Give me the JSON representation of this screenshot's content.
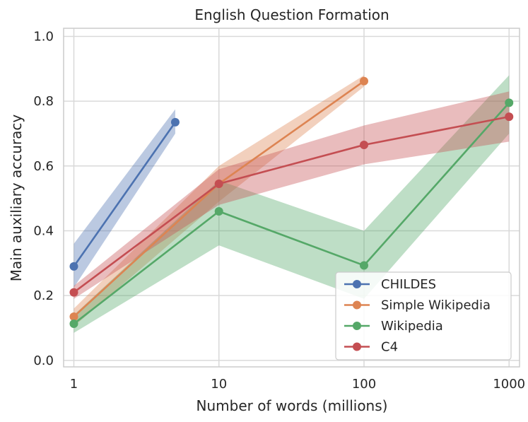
{
  "chart_data": {
    "type": "line",
    "title": "English Question Formation",
    "xlabel": "Number of words (millions)",
    "ylabel": "Main auxiliary accuracy",
    "xscale": "log",
    "xlim": [
      0.85,
      1180
    ],
    "ylim": [
      -0.02,
      1.025
    ],
    "xticks": [
      1,
      10,
      100,
      1000
    ],
    "xtick_labels": [
      "1",
      "10",
      "100",
      "1000"
    ],
    "yticks": [
      0.0,
      0.2,
      0.4,
      0.6,
      0.8,
      1.0
    ],
    "ytick_labels": [
      "0.0",
      "0.2",
      "0.4",
      "0.6",
      "0.8",
      "1.0"
    ],
    "grid": true,
    "legend_position": "bottom-right",
    "series": [
      {
        "name": "CHILDES",
        "color": "#4c72b0",
        "x": [
          1,
          5
        ],
        "y": [
          0.29,
          0.735
        ],
        "lower": [
          0.225,
          0.7
        ],
        "upper": [
          0.36,
          0.775
        ]
      },
      {
        "name": "Simple Wikipedia",
        "color": "#dd8452",
        "x": [
          1,
          10,
          100
        ],
        "y": [
          0.135,
          0.545,
          0.862
        ],
        "lower": [
          0.105,
          0.49,
          0.845
        ],
        "upper": [
          0.16,
          0.6,
          0.88
        ]
      },
      {
        "name": "Wikipedia",
        "color": "#55a868",
        "x": [
          1,
          10,
          100,
          1000
        ],
        "y": [
          0.113,
          0.46,
          0.293,
          0.795
        ],
        "lower": [
          0.085,
          0.355,
          0.19,
          0.7
        ],
        "upper": [
          0.14,
          0.555,
          0.4,
          0.88
        ]
      },
      {
        "name": "C4",
        "color": "#c44e52",
        "x": [
          1,
          10,
          100,
          1000
        ],
        "y": [
          0.21,
          0.545,
          0.665,
          0.752
        ],
        "lower": [
          0.19,
          0.48,
          0.605,
          0.675
        ],
        "upper": [
          0.23,
          0.59,
          0.725,
          0.83
        ]
      }
    ]
  }
}
